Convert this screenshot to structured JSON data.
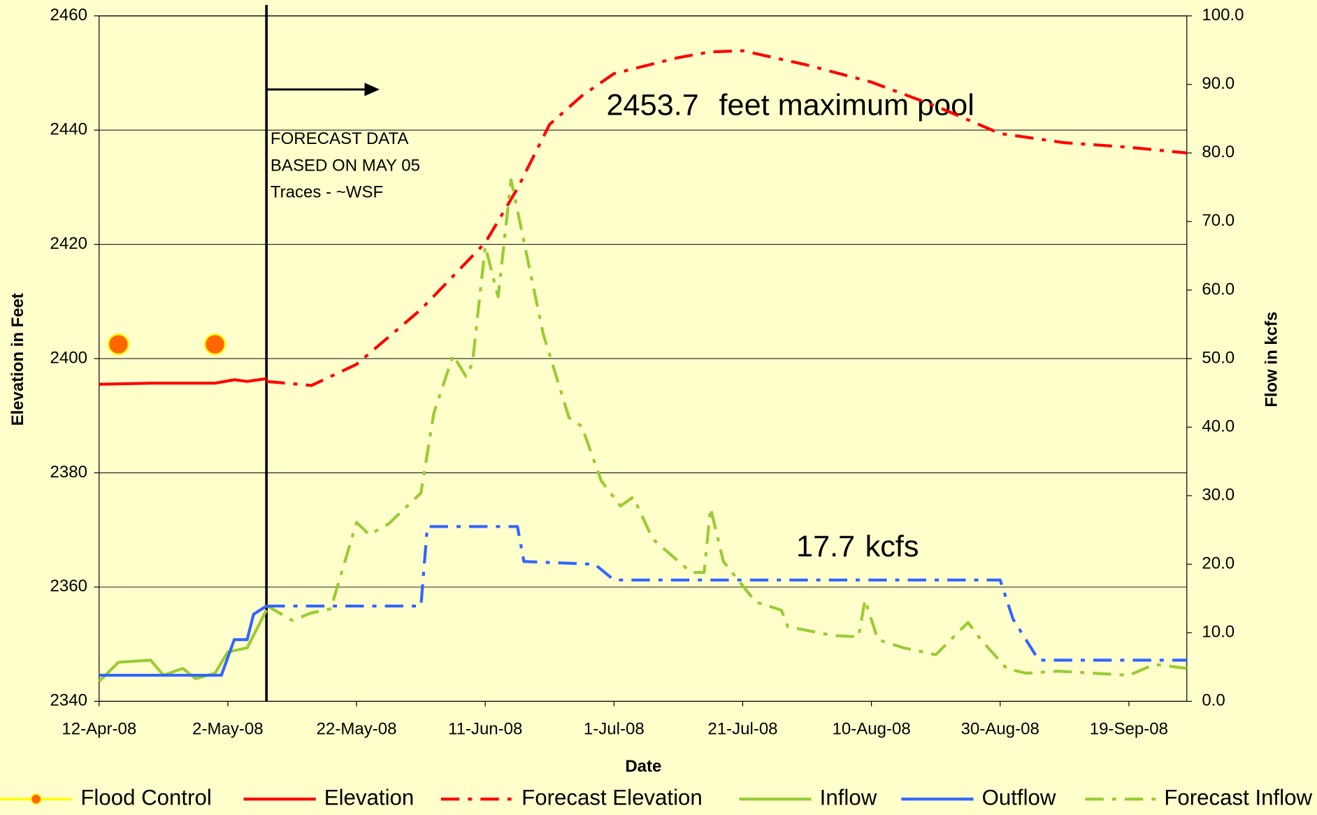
{
  "chart_data": {
    "type": "line",
    "xlabel": "Date",
    "ylabel": "Elevation in Feet",
    "y2label": "Flow in kcfs",
    "xlim": [
      "2008-04-12",
      "2008-09-28"
    ],
    "xticks": [
      {
        "value": "2008-04-12",
        "label": "12-Apr-08"
      },
      {
        "value": "2008-05-02",
        "label": "2-May-08"
      },
      {
        "value": "2008-05-22",
        "label": "22-May-08"
      },
      {
        "value": "2008-06-11",
        "label": "11-Jun-08"
      },
      {
        "value": "2008-07-01",
        "label": "1-Jul-08"
      },
      {
        "value": "2008-07-21",
        "label": "21-Jul-08"
      },
      {
        "value": "2008-08-10",
        "label": "10-Aug-08"
      },
      {
        "value": "2008-08-30",
        "label": "30-Aug-08"
      },
      {
        "value": "2008-09-19",
        "label": "19-Sep-08"
      }
    ],
    "ylim": [
      2340,
      2460
    ],
    "yticks": [
      2340,
      2360,
      2380,
      2400,
      2420,
      2440,
      2460
    ],
    "y2lim": [
      0,
      100
    ],
    "y2ticks": [
      {
        "value": 0,
        "label": "0.0"
      },
      {
        "value": 10,
        "label": "10.0"
      },
      {
        "value": 20,
        "label": "20.0"
      },
      {
        "value": 30,
        "label": "30.0"
      },
      {
        "value": 40,
        "label": "40.0"
      },
      {
        "value": 50,
        "label": "50.0"
      },
      {
        "value": 60,
        "label": "60.0"
      },
      {
        "value": 70,
        "label": "70.0"
      },
      {
        "value": 80,
        "label": "80.0"
      },
      {
        "value": 90,
        "label": "90.0"
      },
      {
        "value": 100,
        "label": "100.0"
      }
    ],
    "grid": true,
    "forecast_date": "2008-05-08",
    "annotations": {
      "forecast": [
        "FORECAST DATA",
        "BASED ON MAY 05",
        "Traces - ~WSF"
      ],
      "max_pool_value": "2453.7",
      "max_pool_text": "feet maximum pool",
      "flow_value": "17.7",
      "flow_text": "kcfs"
    },
    "series": [
      {
        "name": "Flood Control",
        "color": "#ff6600",
        "style": "marker",
        "x": [
          "2008-04-15",
          "2008-04-30"
        ],
        "values": [
          2402.5,
          2402.5
        ]
      },
      {
        "name": "Elevation",
        "color": "#ff0000",
        "style": "solid",
        "x": [
          "2008-04-12",
          "2008-04-20",
          "2008-04-30",
          "2008-05-03",
          "2008-05-05",
          "2008-05-08"
        ],
        "values": [
          2395.5,
          2395.7,
          2395.7,
          2396.3,
          2396,
          2396.5
        ]
      },
      {
        "name": "Forecast Elevation",
        "color": "#ff0000",
        "style": "dashdot",
        "x": [
          "2008-05-08",
          "2008-05-15",
          "2008-05-22",
          "2008-06-01",
          "2008-06-11",
          "2008-06-16",
          "2008-06-21",
          "2008-06-26",
          "2008-07-01",
          "2008-07-11",
          "2008-07-16",
          "2008-07-21",
          "2008-07-31",
          "2008-08-10",
          "2008-08-20",
          "2008-08-30",
          "2008-09-09",
          "2008-09-19",
          "2008-09-28"
        ],
        "values": [
          2396,
          2395.3,
          2399,
          2408.6,
          2420.3,
          2429.8,
          2441,
          2446,
          2449.9,
          2452.7,
          2453.7,
          2453.9,
          2451.4,
          2448.4,
          2444.2,
          2439.4,
          2437.8,
          2437,
          2436
        ]
      },
      {
        "name": "Inflow",
        "color": "#99cc33",
        "style": "solid",
        "axis": "y2",
        "x": [
          "2008-04-12",
          "2008-04-15",
          "2008-04-20",
          "2008-04-22",
          "2008-04-25",
          "2008-04-27",
          "2008-04-30",
          "2008-05-02",
          "2008-05-05",
          "2008-05-08"
        ],
        "values": [
          2.9,
          5.7,
          6,
          3.8,
          4.8,
          3.3,
          4.1,
          7.2,
          7.8,
          13.3
        ]
      },
      {
        "name": "Outflow",
        "color": "#3366ff",
        "style": "solid",
        "axis": "y2",
        "x": [
          "2008-04-12",
          "2008-05-01",
          "2008-05-03",
          "2008-05-05",
          "2008-05-06",
          "2008-05-08"
        ],
        "values": [
          3.8,
          3.8,
          9,
          9,
          12.7,
          13.9
        ]
      },
      {
        "name": "Forecast Inflow",
        "color": "#99cc33",
        "style": "dashdot",
        "axis": "y2",
        "x": [
          "2008-05-08",
          "2008-05-12",
          "2008-05-15",
          "2008-05-18",
          "2008-05-22",
          "2008-05-24",
          "2008-05-27",
          "2008-06-01",
          "2008-06-03",
          "2008-06-06",
          "2008-06-08",
          "2008-06-09",
          "2008-06-11",
          "2008-06-13",
          "2008-06-15",
          "2008-06-20",
          "2008-06-24",
          "2008-06-26",
          "2008-06-29",
          "2008-07-02",
          "2008-07-04",
          "2008-07-07",
          "2008-07-13",
          "2008-07-15",
          "2008-07-16",
          "2008-07-18",
          "2008-07-23",
          "2008-07-27",
          "2008-07-28",
          "2008-08-04",
          "2008-08-08",
          "2008-08-09",
          "2008-08-11",
          "2008-08-15",
          "2008-08-20",
          "2008-08-25",
          "2008-08-27",
          "2008-08-31",
          "2008-09-03",
          "2008-09-08",
          "2008-09-19",
          "2008-09-23",
          "2008-09-28"
        ],
        "values": [
          14,
          11.8,
          12.9,
          13.5,
          26.1,
          24.3,
          25.9,
          30.4,
          42,
          50.5,
          47.4,
          49.3,
          66.4,
          59,
          76.1,
          53.6,
          41.4,
          40.1,
          32.2,
          28.5,
          29.8,
          23.7,
          18.8,
          18.8,
          28.2,
          20.4,
          14.5,
          13.3,
          10.9,
          9.6,
          9.4,
          14.8,
          9,
          7.8,
          6.8,
          11.5,
          9,
          4.8,
          4.1,
          4.4,
          3.8,
          5.4,
          4.8
        ]
      },
      {
        "color": "#3366ff",
        "style": "dashdot",
        "axis": "y2",
        "x": [
          "2008-05-08",
          "2008-06-01",
          "2008-06-02",
          "2008-06-16",
          "2008-06-17",
          "2008-06-28",
          "2008-07-01",
          "2008-08-30",
          "2008-09-01",
          "2008-09-05",
          "2008-09-28"
        ],
        "values": [
          13.9,
          13.9,
          25.5,
          25.5,
          20.4,
          20,
          17.7,
          17.7,
          12,
          6,
          6
        ]
      }
    ]
  }
}
